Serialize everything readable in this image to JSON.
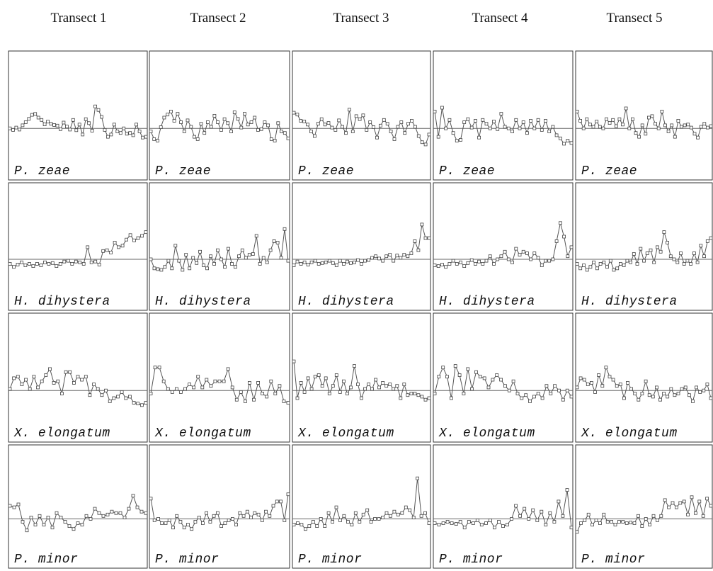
{
  "columns": [
    "Transect 1",
    "Transect 2",
    "Transect 3",
    "Transect 4",
    "Transect 5"
  ],
  "chart_data": {
    "type": "line",
    "grid": false,
    "layout": "small multiples: 4 species rows × 5 transect columns, each panel a standardized series around a zero line",
    "rows": [
      {
        "species": "P. zeae",
        "panels": [
          {
            "transect": "Transect 1",
            "values": [
              0.0,
              -0.1,
              0.05,
              -0.08,
              0.2,
              0.4,
              0.62,
              0.88,
              0.94,
              0.7,
              0.55,
              0.26,
              0.44,
              0.3,
              0.22,
              0.18,
              -0.05,
              0.38,
              0.12,
              -0.08,
              0.55,
              -0.12,
              0.25,
              -0.4,
              0.6,
              0.34,
              -0.15,
              1.43,
              1.2,
              0.75,
              -0.1,
              -0.55,
              -0.4,
              0.25,
              -0.2,
              -0.3,
              0.0,
              -0.35,
              -0.3,
              -0.45,
              0.25,
              -0.2,
              -0.6,
              -0.55
            ]
          },
          {
            "transect": "Transect 2",
            "values": [
              -0.2,
              -0.7,
              -0.8,
              0.08,
              0.7,
              0.9,
              1.1,
              0.5,
              0.95,
              0.4,
              -0.2,
              0.52,
              0.1,
              -0.55,
              -0.7,
              0.3,
              -0.3,
              0.4,
              0.1,
              0.82,
              0.4,
              -0.1,
              0.6,
              0.34,
              -0.2,
              1.05,
              0.62,
              0.05,
              0.95,
              0.25,
              0.4,
              0.7,
              -0.1,
              -0.05,
              0.4,
              0.2,
              -0.7,
              -0.8,
              0.34,
              -0.2,
              -0.3,
              -0.65
            ]
          },
          {
            "transect": "Transect 3",
            "values": [
              1.02,
              0.9,
              0.5,
              0.45,
              0.25,
              -0.2,
              -0.5,
              0.3,
              0.6,
              0.25,
              0.35,
              0.05,
              -0.1,
              0.52,
              0.1,
              -0.3,
              1.22,
              -0.2,
              0.8,
              0.6,
              0.85,
              -0.1,
              0.4,
              0.08,
              -0.6,
              0.18,
              0.55,
              0.3,
              -0.2,
              -0.7,
              0.1,
              0.4,
              -0.3,
              0.3,
              0.5,
              0.1,
              -0.5,
              -0.9,
              -1.05,
              -0.4
            ]
          },
          {
            "transect": "Transect 4",
            "values": [
              1.1,
              -0.55,
              1.35,
              0.0,
              0.55,
              -0.3,
              -0.8,
              -0.75,
              0.4,
              0.6,
              0.05,
              0.5,
              -0.6,
              0.55,
              0.3,
              0.0,
              0.45,
              -0.05,
              0.95,
              0.1,
              0.0,
              -0.2,
              0.55,
              0.0,
              0.4,
              -0.3,
              0.5,
              0.0,
              0.55,
              -0.1,
              0.5,
              -0.2,
              0.1,
              -0.45,
              -0.65,
              -1.0,
              -0.8,
              -0.95
            ]
          },
          {
            "transect": "Transect 5",
            "values": [
              1.1,
              0.5,
              0.0,
              0.6,
              0.25,
              0.1,
              0.45,
              0.1,
              0.0,
              0.6,
              0.35,
              0.55,
              0.15,
              0.6,
              0.25,
              1.3,
              0.0,
              0.6,
              -0.3,
              -0.55,
              0.2,
              -0.35,
              0.7,
              0.8,
              0.3,
              0.0,
              1.1,
              0.2,
              -0.2,
              0.2,
              -0.55,
              0.5,
              0.1,
              0.2,
              0.25,
              0.05,
              -0.35,
              -0.6,
              0.1,
              0.3,
              0.05,
              0.15
            ]
          }
        ]
      },
      {
        "species": "H. dihystera",
        "panels": [
          {
            "transect": "Transect 1",
            "values": [
              -0.3,
              -0.5,
              -0.35,
              -0.2,
              -0.4,
              -0.3,
              -0.45,
              -0.3,
              -0.4,
              -0.2,
              -0.3,
              -0.25,
              -0.45,
              -0.3,
              -0.15,
              -0.1,
              -0.3,
              -0.15,
              -0.2,
              -0.3,
              0.8,
              -0.2,
              -0.15,
              -0.35,
              0.55,
              0.6,
              0.45,
              1.1,
              0.8,
              0.9,
              1.3,
              1.6,
              1.25,
              1.4,
              1.55,
              1.8
            ]
          },
          {
            "transect": "Transect 2",
            "values": [
              0.0,
              -0.6,
              -0.65,
              -0.7,
              -0.5,
              -0.1,
              -0.6,
              0.9,
              -0.1,
              -0.7,
              0.3,
              -0.6,
              0.1,
              -0.25,
              0.5,
              -0.4,
              -0.6,
              0.2,
              -0.3,
              0.6,
              0.0,
              -0.5,
              0.7,
              -0.3,
              -0.5,
              0.2,
              0.6,
              0.1,
              0.3,
              0.35,
              1.55,
              -0.3,
              0.1,
              -0.2,
              0.6,
              1.2,
              1.1,
              0.1,
              2.0,
              -0.1
            ]
          },
          {
            "transect": "Transect 3",
            "values": [
              -0.4,
              -0.15,
              -0.3,
              -0.2,
              -0.35,
              -0.2,
              -0.1,
              -0.3,
              -0.25,
              -0.2,
              -0.1,
              -0.25,
              -0.4,
              -0.1,
              -0.3,
              -0.15,
              -0.25,
              -0.2,
              -0.05,
              -0.3,
              -0.1,
              -0.05,
              0.1,
              0.2,
              0.05,
              -0.1,
              0.2,
              0.3,
              -0.1,
              0.25,
              0.1,
              0.3,
              0.2,
              0.4,
              1.2,
              0.6,
              2.3,
              1.4,
              1.4
            ]
          },
          {
            "transect": "Transect 4",
            "values": [
              -0.4,
              -0.45,
              -0.35,
              -0.5,
              -0.3,
              -0.1,
              -0.3,
              -0.2,
              -0.45,
              -0.25,
              -0.05,
              -0.3,
              -0.15,
              -0.3,
              -0.1,
              0.2,
              -0.3,
              0.0,
              0.2,
              0.5,
              0.0,
              -0.2,
              0.7,
              0.3,
              0.5,
              0.4,
              0.0,
              0.4,
              0.1,
              -0.4,
              -0.1,
              -0.1,
              0.0,
              1.2,
              2.4,
              1.5,
              0.2,
              0.8
            ]
          },
          {
            "transect": "Transect 5",
            "values": [
              -0.3,
              -0.6,
              -0.4,
              -0.7,
              -0.5,
              -0.2,
              -0.6,
              -0.3,
              -0.2,
              -0.5,
              -0.1,
              -0.7,
              -0.6,
              -0.3,
              -0.4,
              -0.1,
              -0.2,
              0.35,
              -0.3,
              0.7,
              -0.1,
              0.4,
              0.6,
              -0.2,
              0.8,
              0.5,
              1.8,
              1.1,
              0.2,
              0.0,
              -0.2,
              0.4,
              -0.3,
              -0.1,
              -0.3,
              0.4,
              -0.2,
              0.9,
              0.2,
              1.2,
              1.4
            ]
          }
        ]
      },
      {
        "species": "X. elongatum",
        "panels": [
          {
            "transect": "Transect 1",
            "values": [
              0.1,
              0.8,
              0.9,
              0.4,
              0.7,
              0.1,
              0.9,
              0.2,
              0.6,
              1.0,
              1.4,
              0.5,
              0.6,
              -0.2,
              1.2,
              1.2,
              0.5,
              0.9,
              0.7,
              0.9,
              -0.3,
              0.4,
              0.1,
              -0.3,
              0.0,
              -0.7,
              -0.5,
              -0.4,
              -0.1,
              -0.5,
              -0.4,
              -0.8,
              -0.85,
              -0.95,
              -0.8
            ]
          },
          {
            "transect": "Transect 2",
            "values": [
              -0.2,
              1.5,
              1.5,
              0.6,
              0.1,
              -0.1,
              0.1,
              -0.1,
              0.1,
              0.4,
              0.2,
              0.9,
              0.2,
              0.7,
              0.3,
              0.6,
              0.6,
              0.6,
              1.4,
              0.2,
              -0.6,
              -0.1,
              -0.7,
              0.5,
              -0.6,
              0.5,
              -0.2,
              -0.4,
              0.6,
              -0.2,
              0.3,
              -0.7,
              -0.8
            ]
          },
          {
            "transect": "Transect 3",
            "values": [
              1.9,
              -0.5,
              0.5,
              -0.1,
              0.8,
              0.1,
              0.9,
              1.0,
              0.3,
              0.8,
              -0.2,
              0.3,
              1.0,
              -0.1,
              0.6,
              -0.2,
              0.2,
              1.6,
              0.4,
              -0.5,
              0.1,
              0.4,
              0.1,
              0.7,
              0.2,
              0.5,
              0.3,
              0.4,
              0.1,
              0.3,
              -0.5,
              0.4,
              -0.3,
              -0.2,
              -0.2,
              -0.3,
              -0.4,
              -0.6,
              -0.5
            ]
          },
          {
            "transect": "Transect 4",
            "values": [
              -0.2,
              0.9,
              1.5,
              0.9,
              -0.5,
              1.6,
              1.0,
              -0.2,
              1.4,
              0.1,
              1.2,
              0.9,
              0.8,
              0.2,
              0.7,
              1.0,
              0.7,
              0.3,
              0.0,
              0.6,
              -0.2,
              -0.5,
              -0.3,
              -0.7,
              -0.4,
              -0.2,
              -0.5,
              0.3,
              -0.2,
              0.3,
              0.0,
              -0.6,
              0.0,
              -0.4
            ]
          },
          {
            "transect": "Transect 5",
            "values": [
              0.2,
              0.8,
              0.7,
              0.4,
              0.5,
              -0.1,
              1.0,
              0.3,
              1.5,
              0.9,
              0.7,
              0.3,
              0.4,
              -0.5,
              0.5,
              0.1,
              -0.2,
              -0.6,
              -0.2,
              0.6,
              -0.3,
              -0.4,
              0.2,
              -0.6,
              -0.2,
              -0.4,
              0.1,
              -0.3,
              -0.2,
              0.1,
              0.2,
              -0.3,
              -0.7,
              0.2,
              -0.1,
              0.0,
              0.4,
              -0.5
            ]
          }
        ]
      },
      {
        "species": "P. minor",
        "panels": [
          {
            "transect": "Transect 1",
            "values": [
              0.9,
              0.8,
              1.0,
              -0.2,
              -0.8,
              0.1,
              -0.4,
              0.2,
              -0.4,
              0.1,
              -0.6,
              0.4,
              0.1,
              -0.2,
              -0.5,
              -0.7,
              -0.3,
              -0.4,
              0.2,
              0.0,
              0.7,
              0.4,
              0.2,
              0.3,
              0.5,
              0.4,
              0.4,
              0.1,
              0.7,
              1.6,
              0.8,
              0.5,
              0.4
            ]
          },
          {
            "transect": "Transect 2",
            "values": [
              1.4,
              -0.1,
              0.0,
              -0.3,
              -0.3,
              -0.1,
              -0.6,
              0.2,
              -0.2,
              -0.6,
              -0.4,
              -0.7,
              -0.2,
              0.1,
              -0.3,
              0.4,
              -0.2,
              0.2,
              0.4,
              -0.5,
              -0.3,
              -0.1,
              0.0,
              -0.4,
              0.4,
              0.2,
              0.5,
              0.1,
              0.4,
              0.3,
              -0.1,
              0.5,
              0.2,
              0.9,
              1.2,
              1.2,
              -0.1,
              1.7
            ]
          },
          {
            "transect": "Transect 3",
            "values": [
              -0.4,
              -0.3,
              -0.4,
              -0.7,
              -0.5,
              -0.2,
              -0.5,
              0.0,
              -0.5,
              0.4,
              -0.2,
              0.8,
              -0.1,
              0.2,
              -0.2,
              -0.4,
              0.4,
              -0.2,
              0.3,
              0.6,
              -0.2,
              0.0,
              0.0,
              0.1,
              0.4,
              0.2,
              0.5,
              0.3,
              0.4,
              0.8,
              0.6,
              0.1,
              2.8,
              0.2,
              0.4,
              -0.3
            ]
          },
          {
            "transect": "Transect 4",
            "values": [
              -0.3,
              -0.4,
              -0.3,
              -0.2,
              -0.3,
              -0.35,
              -0.2,
              -0.6,
              -0.2,
              -0.3,
              -0.1,
              -0.4,
              -0.3,
              -0.1,
              -0.6,
              -0.2,
              -0.5,
              -0.4,
              0.0,
              0.9,
              0.2,
              0.7,
              0.0,
              0.6,
              -0.1,
              0.5,
              -0.4,
              0.4,
              -0.2,
              1.2,
              0.2,
              2.0,
              -0.6
            ]
          },
          {
            "transect": "Transect 5",
            "values": [
              -0.9,
              -0.3,
              -0.1,
              0.3,
              -0.4,
              -0.1,
              -0.3,
              0.3,
              -0.2,
              -0.2,
              -0.4,
              -0.2,
              -0.2,
              -0.3,
              -0.25,
              -0.3,
              0.2,
              -0.5,
              0.0,
              -0.4,
              0.2,
              -0.1,
              0.2,
              1.3,
              0.8,
              1.1,
              0.8,
              1.1,
              1.2,
              0.3,
              1.5,
              0.4,
              1.2,
              0.2,
              1.4,
              0.9
            ]
          }
        ]
      }
    ]
  }
}
